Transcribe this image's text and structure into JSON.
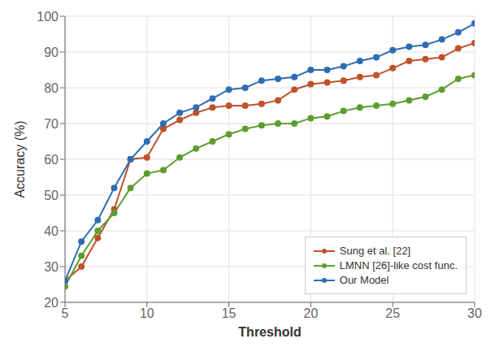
{
  "chart_data": {
    "type": "line",
    "xlabel": "Threshold",
    "ylabel": "Accuracy (%)",
    "x": [
      5,
      6,
      7,
      8,
      9,
      10,
      11,
      12,
      13,
      14,
      15,
      16,
      17,
      18,
      19,
      20,
      21,
      22,
      23,
      24,
      25,
      26,
      27,
      28,
      29,
      30
    ],
    "series": [
      {
        "name": "Sung et al. [22]",
        "color": "#c0522a",
        "values": [
          26.0,
          30.0,
          38.0,
          46.0,
          60.0,
          60.5,
          68.5,
          71.0,
          73.0,
          74.5,
          75.0,
          75.0,
          75.5,
          76.5,
          79.5,
          81.0,
          81.5,
          82.0,
          83.0,
          83.5,
          85.5,
          87.5,
          88.0,
          88.5,
          91.0,
          92.5
        ]
      },
      {
        "name": "LMNN [26]-like cost func.",
        "color": "#5c9e2e",
        "values": [
          24.5,
          33.0,
          40.0,
          45.0,
          52.0,
          56.0,
          57.0,
          60.5,
          63.0,
          65.0,
          67.0,
          68.5,
          69.5,
          70.0,
          70.0,
          71.5,
          72.0,
          73.5,
          74.5,
          75.0,
          75.5,
          76.5,
          77.5,
          79.5,
          82.5,
          83.5
        ]
      },
      {
        "name": "Our Model",
        "color": "#2e6db4",
        "values": [
          26.0,
          37.0,
          43.0,
          52.0,
          60.0,
          65.0,
          70.0,
          73.0,
          74.5,
          77.0,
          79.5,
          80.0,
          82.0,
          82.5,
          83.0,
          85.0,
          85.0,
          86.0,
          87.5,
          88.5,
          90.5,
          91.5,
          92.0,
          93.5,
          95.5,
          98.0
        ]
      }
    ],
    "xlim": [
      5,
      30
    ],
    "ylim": [
      20,
      100
    ],
    "xticks": [
      5,
      10,
      15,
      20,
      25,
      30
    ],
    "yticks": [
      20,
      30,
      40,
      50,
      60,
      70,
      80,
      90,
      100
    ],
    "grid": true,
    "legend": "lower right",
    "marker": "circle"
  }
}
